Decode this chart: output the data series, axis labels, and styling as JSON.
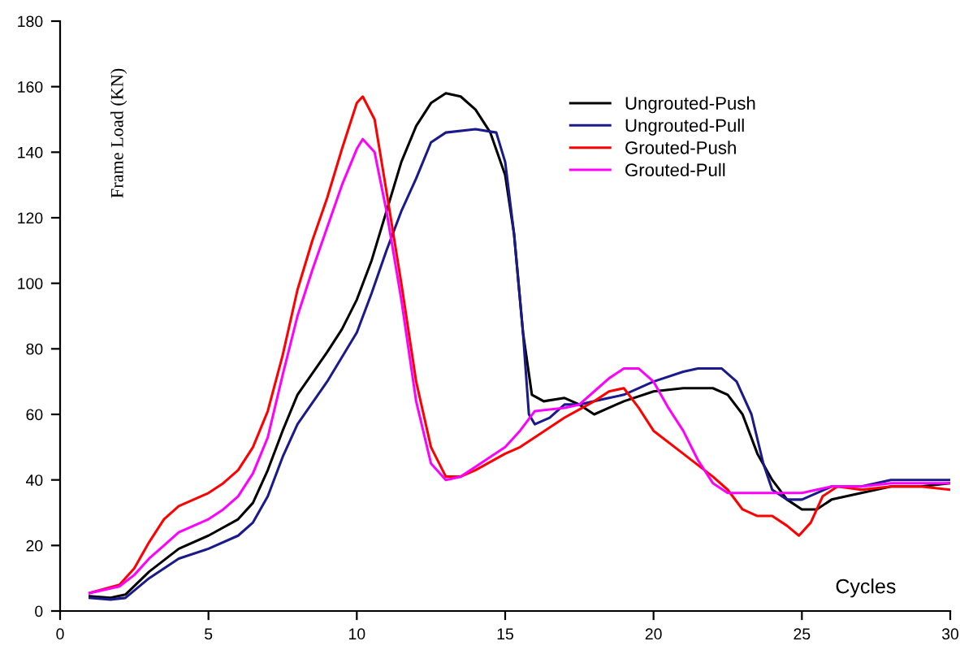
{
  "chart_data": {
    "type": "line",
    "xlabel": "Cycles",
    "ylabel": "Frame Load (KN)",
    "xlim": [
      0,
      30
    ],
    "ylim": [
      0,
      180
    ],
    "xticks": [
      0,
      5,
      10,
      15,
      20,
      25,
      30
    ],
    "yticks": [
      0,
      20,
      40,
      60,
      80,
      100,
      120,
      140,
      160,
      180
    ],
    "grid": false,
    "legend": "top right",
    "marker": "none",
    "line_style": "solid",
    "series": [
      {
        "name": "Ungrouted-Push",
        "color": "#000000",
        "x": [
          1,
          1.7,
          2.2,
          3,
          4,
          5,
          6,
          6.5,
          7,
          7.5,
          8,
          9,
          9.5,
          10,
          10.5,
          11,
          11.5,
          12,
          12.5,
          13,
          13.5,
          14,
          14.5,
          15,
          15.3,
          15.6,
          15.9,
          16.3,
          17,
          17.5,
          18,
          18.5,
          19,
          20,
          21,
          22,
          22.5,
          23,
          23.5,
          24,
          24.5,
          25,
          25.5,
          26,
          27,
          28,
          29,
          30
        ],
        "values": [
          4.5,
          4,
          5,
          12,
          19,
          23,
          28,
          33,
          43,
          55,
          66,
          79,
          86,
          95,
          107,
          122,
          137,
          148,
          155,
          158,
          157,
          153,
          146,
          133,
          115,
          85,
          66,
          64,
          65,
          63,
          60,
          62,
          64,
          67,
          68,
          68,
          66,
          60,
          48,
          40,
          34,
          31,
          31,
          34,
          36,
          38,
          38,
          39
        ]
      },
      {
        "name": "Ungrouted-Pull",
        "color": "#1a1a8c",
        "x": [
          1,
          1.7,
          2.2,
          3,
          4,
          5,
          6,
          6.5,
          7,
          7.5,
          8,
          9,
          10,
          10.5,
          11,
          11.5,
          12,
          12.5,
          13,
          14,
          14.7,
          15,
          15.3,
          15.6,
          15.8,
          16,
          16.5,
          17,
          17.5,
          18,
          18.5,
          19,
          20,
          21,
          21.5,
          22.3,
          22.8,
          23.3,
          23.7,
          24,
          24.5,
          25,
          25.5,
          26,
          27,
          28,
          29,
          30
        ],
        "values": [
          4,
          3.5,
          4,
          10,
          16,
          19,
          23,
          27,
          35,
          47,
          57,
          70,
          85,
          97,
          110,
          122,
          132,
          143,
          146,
          147,
          146,
          137,
          115,
          85,
          60,
          57,
          59,
          63,
          63,
          64,
          65,
          66,
          70,
          73,
          74,
          74,
          70,
          60,
          45,
          37,
          34,
          34,
          36,
          38,
          38,
          40,
          40,
          40
        ]
      },
      {
        "name": "Grouted-Push",
        "color": "#ff0000",
        "x": [
          1,
          2,
          2.5,
          3,
          3.5,
          4,
          5,
          5.5,
          6,
          6.5,
          7,
          7.5,
          8,
          8.5,
          9,
          9.5,
          10,
          10.2,
          10.6,
          11,
          11.5,
          12,
          12.5,
          13,
          13.5,
          14,
          15,
          15.5,
          16,
          17,
          18,
          18.5,
          19,
          19.5,
          20,
          21,
          22,
          22.5,
          23,
          23.5,
          24,
          24.5,
          24.9,
          25.3,
          25.7,
          26.2,
          27,
          28,
          29,
          30
        ],
        "values": [
          5.5,
          8,
          13,
          21,
          28,
          32,
          36,
          39,
          43,
          50,
          61,
          78,
          98,
          113,
          126,
          141,
          155,
          157,
          150,
          128,
          100,
          70,
          50,
          41,
          41,
          43,
          48,
          50,
          53,
          59,
          64,
          67,
          68,
          62,
          55,
          48,
          41,
          37,
          31,
          29,
          29,
          26,
          23,
          27,
          35,
          38,
          37,
          38,
          38,
          37
        ]
      },
      {
        "name": "Grouted-Pull",
        "color": "#ff00ff",
        "x": [
          1,
          2,
          2.5,
          3,
          3.5,
          4,
          5,
          5.5,
          6,
          6.5,
          7,
          7.5,
          8,
          8.5,
          9,
          9.5,
          10,
          10.2,
          10.6,
          11,
          11.5,
          12,
          12.5,
          13,
          13.5,
          14,
          15,
          15.5,
          16,
          17,
          17.5,
          18,
          18.5,
          19,
          19.5,
          20,
          20.5,
          21,
          21.5,
          22,
          22.5,
          23,
          24,
          25,
          25.5,
          26,
          27,
          28,
          29,
          30
        ],
        "values": [
          5.5,
          7.5,
          11,
          16,
          20,
          24,
          28,
          31,
          35,
          42,
          53,
          72,
          90,
          104,
          117,
          130,
          141,
          144,
          140,
          122,
          95,
          64,
          45,
          40,
          41,
          44,
          50,
          55,
          61,
          62,
          63,
          67,
          71,
          74,
          74,
          70,
          62,
          55,
          46,
          39,
          36,
          36,
          36,
          36,
          37,
          38,
          38,
          39,
          39,
          39
        ]
      }
    ]
  }
}
